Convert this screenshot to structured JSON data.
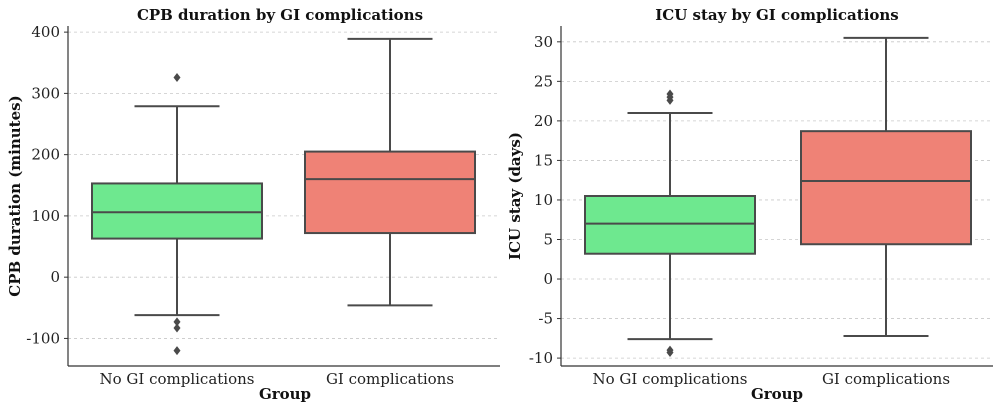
{
  "chart_data": [
    {
      "type": "box",
      "title": "CPB duration by GI complications",
      "xlabel": "Group",
      "ylabel": "CPB duration (minutes)",
      "ylim": [
        -145,
        410
      ],
      "yticks": [
        400,
        300,
        200,
        100,
        0,
        -100
      ],
      "ytick_labels": [
        "400",
        "300",
        "200",
        "100",
        "0",
        "-100"
      ],
      "grid": true,
      "categories": [
        "No GI complications",
        "GI complications"
      ],
      "boxes": [
        {
          "category": "No GI complications",
          "whisker_low": -62,
          "q1": 63,
          "median": 106,
          "q3": 153,
          "whisker_high": 279,
          "fliers": [
            326,
            -73,
            -83,
            -120
          ],
          "color": "#6ee88f"
        },
        {
          "category": "GI complications",
          "whisker_low": -46,
          "q1": 72,
          "median": 160,
          "q3": 205,
          "whisker_high": 389,
          "fliers": [],
          "color": "#ef8276"
        }
      ]
    },
    {
      "type": "box",
      "title": "ICU stay by GI complications",
      "xlabel": "Group",
      "ylabel": "ICU stay (days)",
      "ylim": [
        -11,
        32
      ],
      "yticks": [
        30,
        25,
        20,
        15,
        10,
        5,
        0,
        -5,
        -10
      ],
      "ytick_labels": [
        "30",
        "25",
        "20",
        "15",
        "10",
        "5",
        "0",
        "-5",
        "-10"
      ],
      "grid": true,
      "categories": [
        "No GI complications",
        "GI complications"
      ],
      "boxes": [
        {
          "category": "No GI complications",
          "whisker_low": -7.6,
          "q1": 3.2,
          "median": 7.0,
          "q3": 10.5,
          "whisker_high": 21.0,
          "fliers": [
            22.6,
            23.0,
            23.4,
            -9.0,
            -9.3
          ],
          "color": "#6ee88f"
        },
        {
          "category": "GI complications",
          "whisker_low": -7.2,
          "q1": 4.4,
          "median": 12.4,
          "q3": 18.7,
          "whisker_high": 30.5,
          "fliers": [],
          "color": "#ef8276"
        }
      ]
    }
  ]
}
